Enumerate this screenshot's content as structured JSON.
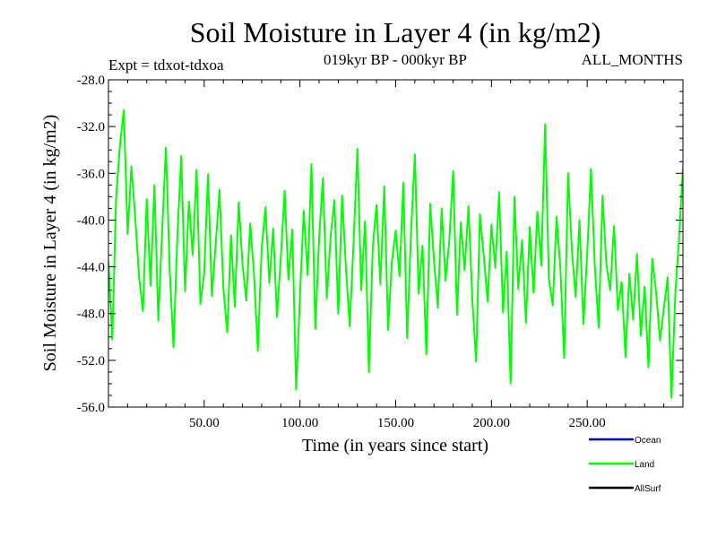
{
  "header": {
    "left_label": "Expt = tdxot-tdxoa",
    "center_label": "019kyr BP - 000kyr BP",
    "right_label": "ALL_MONTHS"
  },
  "chart_data": {
    "type": "line",
    "title": "Soil Moisture in Layer 4 (in kg/m2)",
    "xlabel": "Time (in years since start)",
    "ylabel": "Soil Moisture in Layer 4 (in kg/m2)",
    "xlim": [
      0,
      300
    ],
    "ylim": [
      -56,
      -28
    ],
    "xticks": [
      50,
      100,
      150,
      200,
      250
    ],
    "xtick_labels": [
      "50.00",
      "100.00",
      "150.00",
      "200.00",
      "250.00"
    ],
    "yticks": [
      -28,
      -32,
      -36,
      -40,
      -44,
      -48,
      -52,
      -56
    ],
    "ytick_labels": [
      "-28.0",
      "-32.0",
      "-36.0",
      "-40.0",
      "-44.0",
      "-48.0",
      "-52.0",
      "-56.0"
    ],
    "legend": {
      "placement": "bottom-right",
      "entries": [
        {
          "name": "Ocean",
          "color": "#0000cc"
        },
        {
          "name": "Land",
          "color": "#00ff00"
        },
        {
          "name": "AllSurf",
          "color": "#000000"
        }
      ]
    },
    "series": [
      {
        "name": "Land",
        "color": "#00ff00",
        "x": [
          0,
          2,
          4,
          6,
          8,
          10,
          12,
          14,
          16,
          18,
          20,
          22,
          24,
          26,
          28,
          30,
          32,
          34,
          36,
          38,
          40,
          42,
          44,
          46,
          48,
          50,
          52,
          54,
          56,
          58,
          60,
          62,
          64,
          66,
          68,
          70,
          72,
          74,
          76,
          78,
          80,
          82,
          84,
          86,
          88,
          90,
          92,
          94,
          96,
          98,
          100,
          102,
          104,
          106,
          108,
          110,
          112,
          114,
          116,
          118,
          120,
          122,
          124,
          126,
          128,
          130,
          132,
          134,
          136,
          138,
          140,
          142,
          144,
          146,
          148,
          150,
          152,
          154,
          156,
          158,
          160,
          162,
          164,
          166,
          168,
          170,
          172,
          174,
          176,
          178,
          180,
          182,
          184,
          186,
          188,
          190,
          192,
          194,
          196,
          198,
          200,
          202,
          204,
          206,
          208,
          210,
          212,
          214,
          216,
          218,
          220,
          222,
          224,
          226,
          228,
          230,
          232,
          234,
          236,
          238,
          240,
          242,
          244,
          246,
          248,
          250,
          252,
          254,
          256,
          258,
          260,
          262,
          264,
          266,
          268,
          270,
          272,
          274,
          276,
          278,
          280,
          282,
          284,
          286,
          288,
          290,
          292,
          294,
          296,
          298,
          300
        ],
        "values": [
          -43.5,
          -50.2,
          -38.1,
          -33.6,
          -30.6,
          -41.2,
          -35.4,
          -39.8,
          -44.9,
          -47.8,
          -38.2,
          -45.6,
          -37.0,
          -48.6,
          -41.1,
          -33.8,
          -44.4,
          -50.9,
          -41.4,
          -34.5,
          -46.1,
          -38.4,
          -43.0,
          -35.7,
          -47.2,
          -44.5,
          -36.1,
          -46.5,
          -42.0,
          -37.4,
          -45.8,
          -49.6,
          -41.3,
          -47.4,
          -38.5,
          -43.8,
          -46.9,
          -40.3,
          -44.6,
          -51.2,
          -42.5,
          -38.9,
          -45.4,
          -40.7,
          -48.3,
          -43.2,
          -37.5,
          -45.1,
          -40.8,
          -54.5,
          -46.4,
          -39.2,
          -44.7,
          -35.2,
          -49.3,
          -41.6,
          -36.4,
          -46.7,
          -41.4,
          -38.3,
          -48.0,
          -37.9,
          -44.0,
          -49.1,
          -41.9,
          -33.9,
          -46.0,
          -40.1,
          -53.0,
          -42.3,
          -38.7,
          -45.5,
          -37.1,
          -49.4,
          -43.6,
          -40.9,
          -44.8,
          -36.8,
          -50.1,
          -41.0,
          -34.4,
          -46.3,
          -42.2,
          -51.5,
          -38.6,
          -43.4,
          -47.5,
          -39.0,
          -45.2,
          -41.8,
          -35.8,
          -48.1,
          -40.2,
          -44.3,
          -38.8,
          -46.8,
          -52.1,
          -39.5,
          -43.1,
          -47.0,
          -40.4,
          -44.1,
          -37.6,
          -47.9,
          -42.7,
          -54.0,
          -38.0,
          -45.9,
          -41.7,
          -48.8,
          -40.6,
          -46.2,
          -39.3,
          -43.9,
          -31.8,
          -45.0,
          -47.3,
          -39.7,
          -44.2,
          -51.8,
          -36.0,
          -42.6,
          -46.6,
          -40.0,
          -48.9,
          -42.8,
          -35.6,
          -44.0,
          -49.2,
          -37.9,
          -43.7,
          -46.0,
          -40.5,
          -47.7,
          -45.3,
          -51.7,
          -44.6,
          -48.5,
          -42.9,
          -49.9,
          -45.7,
          -52.6,
          -43.3,
          -46.2,
          -50.3,
          -47.6,
          -44.9,
          -55.2,
          -46.3,
          -41.5,
          -35.5
        ]
      }
    ]
  }
}
